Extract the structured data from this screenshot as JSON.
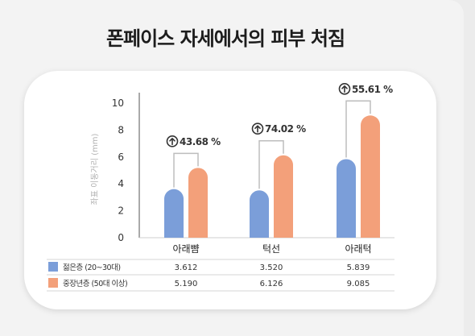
{
  "title": "폰페이스 자세에서의 피부 처짐",
  "colors": {
    "young": "#7b9ed9",
    "older": "#f3a07a",
    "bracket": "#bdbdbd"
  },
  "chart_data": {
    "type": "bar",
    "title": "폰페이스 자세에서의 피부 처짐",
    "ylabel": "좌표 이동거리 (mm)",
    "xlabel": "",
    "ylim": [
      0,
      10
    ],
    "yticks": [
      "0",
      "2",
      "4",
      "6",
      "8",
      "10"
    ],
    "grid": false,
    "legend_placement": "data-table below axis",
    "categories": [
      "아래뺨",
      "턱선",
      "아래턱"
    ],
    "series": [
      {
        "name": "젊은층 (20~30대)",
        "values": [
          3.612,
          3.52,
          5.839
        ],
        "labels": [
          "3.612",
          "3.520",
          "5.839"
        ]
      },
      {
        "name": "중장년층 (50대 이상)",
        "values": [
          5.19,
          6.126,
          9.085
        ],
        "labels": [
          "5.190",
          "6.126",
          "9.085"
        ]
      }
    ],
    "annotations": [
      "43.68 %",
      "74.02 %",
      "55.61 %"
    ],
    "annotation_icon": "arrow-up-circle-icon"
  }
}
